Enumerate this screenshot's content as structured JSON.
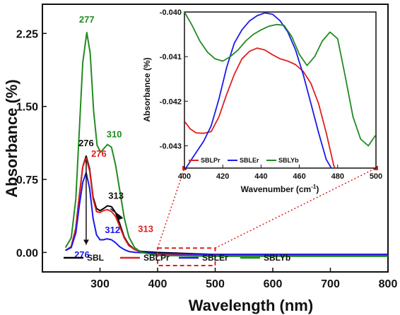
{
  "chart_data": {
    "type": "line",
    "main": {
      "xlabel": "Wavelength (nm)",
      "ylabel": "Absorbance (%)",
      "xlim": [
        200,
        800
      ],
      "ylim": [
        -0.2,
        2.55
      ],
      "xticks": [
        300,
        400,
        500,
        600,
        700,
        800
      ],
      "yticks": [
        0.0,
        0.75,
        1.5,
        2.25
      ],
      "ytick_labels": [
        "0.00",
        "0.75",
        "1.50",
        "2.25"
      ],
      "series": [
        {
          "name": "SBL",
          "color": "#000000",
          "points": [
            [
              240,
              0.02
            ],
            [
              250,
              0.06
            ],
            [
              258,
              0.25
            ],
            [
              264,
              0.58
            ],
            [
              270,
              0.88
            ],
            [
              276,
              0.99
            ],
            [
              282,
              0.86
            ],
            [
              288,
              0.57
            ],
            [
              294,
              0.45
            ],
            [
              300,
              0.43
            ],
            [
              306,
              0.45
            ],
            [
              313,
              0.48
            ],
            [
              320,
              0.47
            ],
            [
              327,
              0.41
            ],
            [
              334,
              0.3
            ],
            [
              342,
              0.16
            ],
            [
              350,
              0.08
            ],
            [
              360,
              0.03
            ],
            [
              372,
              0.01
            ],
            [
              400,
              0.0
            ],
            [
              500,
              -0.02
            ],
            [
              600,
              -0.02
            ],
            [
              700,
              -0.02
            ],
            [
              800,
              -0.02
            ]
          ]
        },
        {
          "name": "SBLPr",
          "color": "#e02020",
          "points": [
            [
              240,
              0.02
            ],
            [
              250,
              0.06
            ],
            [
              258,
              0.25
            ],
            [
              264,
              0.58
            ],
            [
              270,
              0.88
            ],
            [
              276,
              0.97
            ],
            [
              282,
              0.84
            ],
            [
              288,
              0.55
            ],
            [
              294,
              0.42
            ],
            [
              300,
              0.41
            ],
            [
              306,
              0.43
            ],
            [
              313,
              0.44
            ],
            [
              320,
              0.42
            ],
            [
              327,
              0.37
            ],
            [
              334,
              0.27
            ],
            [
              342,
              0.15
            ],
            [
              350,
              0.07
            ],
            [
              360,
              0.03
            ],
            [
              372,
              0.0
            ],
            [
              400,
              -0.02
            ],
            [
              500,
              -0.03
            ],
            [
              600,
              -0.03
            ],
            [
              700,
              -0.03
            ],
            [
              800,
              -0.03
            ]
          ]
        },
        {
          "name": "SBLEr",
          "color": "#1a1aee",
          "points": [
            [
              240,
              0.02
            ],
            [
              250,
              0.05
            ],
            [
              258,
              0.2
            ],
            [
              264,
              0.48
            ],
            [
              270,
              0.72
            ],
            [
              276,
              0.82
            ],
            [
              282,
              0.66
            ],
            [
              288,
              0.35
            ],
            [
              294,
              0.18
            ],
            [
              300,
              0.13
            ],
            [
              306,
              0.13
            ],
            [
              312,
              0.14
            ],
            [
              320,
              0.13
            ],
            [
              327,
              0.1
            ],
            [
              334,
              0.06
            ],
            [
              342,
              0.03
            ],
            [
              350,
              0.01
            ],
            [
              362,
              0.0
            ],
            [
              400,
              -0.01
            ],
            [
              500,
              -0.02
            ],
            [
              600,
              -0.02
            ],
            [
              700,
              -0.02
            ],
            [
              800,
              -0.02
            ]
          ]
        },
        {
          "name": "SBLYb",
          "color": "#228b22",
          "points": [
            [
              240,
              0.05
            ],
            [
              250,
              0.15
            ],
            [
              258,
              0.55
            ],
            [
              264,
              1.25
            ],
            [
              270,
              1.95
            ],
            [
              277,
              2.26
            ],
            [
              283,
              2.05
            ],
            [
              289,
              1.45
            ],
            [
              295,
              1.1
            ],
            [
              301,
              1.03
            ],
            [
              307,
              1.07
            ],
            [
              313,
              1.11
            ],
            [
              320,
              1.08
            ],
            [
              327,
              0.9
            ],
            [
              334,
              0.65
            ],
            [
              342,
              0.36
            ],
            [
              350,
              0.16
            ],
            [
              360,
              0.05
            ],
            [
              372,
              0.0
            ],
            [
              400,
              -0.03
            ],
            [
              500,
              -0.04
            ],
            [
              600,
              -0.04
            ],
            [
              700,
              -0.04
            ],
            [
              800,
              -0.04
            ]
          ]
        }
      ],
      "annotations": [
        {
          "text": "277",
          "color": "#228b22"
        },
        {
          "text": "310",
          "color": "#228b22"
        },
        {
          "text": "276",
          "color": "#111111"
        },
        {
          "text": "313",
          "color": "#111111"
        },
        {
          "text": "276",
          "color": "#e02020"
        },
        {
          "text": "313",
          "color": "#e02020"
        },
        {
          "text": "312",
          "color": "#1a1aee"
        },
        {
          "text": "276",
          "color": "#1a1aee"
        }
      ],
      "legend": [
        {
          "name": "SBL",
          "color": "#000000"
        },
        {
          "name": "SBLPr",
          "color": "#e02020"
        },
        {
          "name": "SBLEr",
          "color": "#1a1aee"
        },
        {
          "name": "SBLYb",
          "color": "#228b22"
        }
      ],
      "legend_position": "bottom"
    },
    "inset": {
      "xlabel": "Wavenumber (cm-1)",
      "xlabel_main": "Wavenumber (cm",
      "xlabel_sup": "-1",
      "xlabel_close": ")",
      "ylabel": "Absorbance (%)",
      "xlim": [
        400,
        500
      ],
      "ylim": [
        -0.0435,
        -0.04
      ],
      "xticks": [
        400,
        420,
        440,
        460,
        480,
        500
      ],
      "yticks": [
        -0.04,
        -0.041,
        -0.042,
        -0.043
      ],
      "ytick_labels": [
        "-0.040",
        "-0.041",
        "-0.042",
        "-0.043"
      ],
      "zoom_region": {
        "x": [
          400,
          500
        ]
      },
      "series": [
        {
          "name": "SBLPr",
          "color": "#e02020",
          "points": [
            [
              400,
              -0.04245
            ],
            [
              403,
              -0.04262
            ],
            [
              406,
              -0.04271
            ],
            [
              410,
              -0.04272
            ],
            [
              414,
              -0.04268
            ],
            [
              418,
              -0.04235
            ],
            [
              422,
              -0.04185
            ],
            [
              426,
              -0.0414
            ],
            [
              430,
              -0.04105
            ],
            [
              434,
              -0.04088
            ],
            [
              438,
              -0.04081
            ],
            [
              442,
              -0.04085
            ],
            [
              446,
              -0.04096
            ],
            [
              450,
              -0.04105
            ],
            [
              454,
              -0.0411
            ],
            [
              458,
              -0.04118
            ],
            [
              462,
              -0.04133
            ],
            [
              466,
              -0.0416
            ],
            [
              470,
              -0.04205
            ],
            [
              474,
              -0.0427
            ],
            [
              478,
              -0.04345
            ],
            [
              480,
              -0.0436
            ]
          ]
        },
        {
          "name": "SBLEr",
          "color": "#1a1aee",
          "points": [
            [
              400,
              -0.04355
            ],
            [
              405,
              -0.04322
            ],
            [
              410,
              -0.0429
            ],
            [
              414,
              -0.04255
            ],
            [
              418,
              -0.04195
            ],
            [
              422,
              -0.04125
            ],
            [
              426,
              -0.0407
            ],
            [
              430,
              -0.0404
            ],
            [
              434,
              -0.0402
            ],
            [
              438,
              -0.04008
            ],
            [
              442,
              -0.04002
            ],
            [
              446,
              -0.04005
            ],
            [
              450,
              -0.0402
            ],
            [
              454,
              -0.04045
            ],
            [
              458,
              -0.04085
            ],
            [
              462,
              -0.0414
            ],
            [
              466,
              -0.04205
            ],
            [
              470,
              -0.0427
            ],
            [
              474,
              -0.0433
            ],
            [
              478,
              -0.0436
            ],
            [
              480,
              -0.0436
            ]
          ]
        },
        {
          "name": "SBLYb",
          "color": "#228b22",
          "points": [
            [
              400,
              -0.04
            ],
            [
              404,
              -0.0403
            ],
            [
              408,
              -0.04065
            ],
            [
              412,
              -0.0409
            ],
            [
              416,
              -0.04105
            ],
            [
              420,
              -0.0411
            ],
            [
              424,
              -0.041
            ],
            [
              428,
              -0.04085
            ],
            [
              432,
              -0.04065
            ],
            [
              436,
              -0.0405
            ],
            [
              440,
              -0.0404
            ],
            [
              444,
              -0.04032
            ],
            [
              448,
              -0.04028
            ],
            [
              452,
              -0.0403
            ],
            [
              456,
              -0.04055
            ],
            [
              460,
              -0.04095
            ],
            [
              464,
              -0.0412
            ],
            [
              468,
              -0.041
            ],
            [
              472,
              -0.04065
            ],
            [
              476,
              -0.04045
            ],
            [
              480,
              -0.0406
            ],
            [
              484,
              -0.04145
            ],
            [
              488,
              -0.04235
            ],
            [
              492,
              -0.04285
            ],
            [
              496,
              -0.043
            ],
            [
              500,
              -0.04275
            ]
          ]
        }
      ],
      "legend": [
        {
          "name": "SBLPr",
          "color": "#e02020"
        },
        {
          "name": "SBLEr",
          "color": "#1a1aee"
        },
        {
          "name": "SBLYb",
          "color": "#228b22"
        }
      ]
    }
  }
}
